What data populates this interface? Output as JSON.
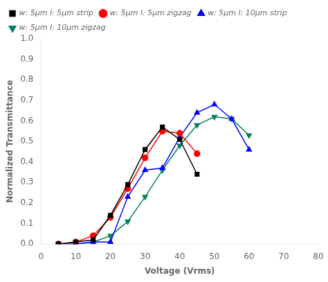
{
  "chart_data": {
    "type": "line",
    "xlabel": "Voltage (Vrms)",
    "ylabel": "Normalized Transmittance",
    "series": [
      {
        "name": "w: 5μm l: 5μm strip",
        "color": "black",
        "marker": "square",
        "x": [
          5,
          10,
          15,
          20,
          25,
          30,
          35,
          40,
          45
        ],
        "values": [
          0.0,
          0.01,
          0.02,
          0.14,
          0.29,
          0.46,
          0.57,
          0.51,
          0.34
        ]
      },
      {
        "name": "w: 5μm l: 5μm zigzag",
        "color": "red",
        "marker": "circle",
        "x": [
          5,
          10,
          15,
          20,
          25,
          30,
          35,
          40,
          45
        ],
        "values": [
          0.0,
          0.01,
          0.04,
          0.13,
          0.27,
          0.42,
          0.55,
          0.54,
          0.44
        ]
      },
      {
        "name": "w: 5μm l: 10μm strip",
        "color": "blue",
        "marker": "triangle_up",
        "x": [
          5,
          10,
          15,
          20,
          25,
          30,
          35,
          40,
          45,
          50,
          55,
          60
        ],
        "values": [
          0.0,
          0.0,
          0.01,
          0.01,
          0.23,
          0.36,
          0.37,
          0.52,
          0.64,
          0.68,
          0.61,
          0.46
        ]
      },
      {
        "name": "w: 5μm l: 10μm zigzag",
        "color": "#008060",
        "marker": "triangle_down",
        "x": [
          5,
          10,
          15,
          20,
          25,
          30,
          35,
          40,
          45,
          50,
          55,
          60
        ],
        "values": [
          0.0,
          0.0,
          0.01,
          0.04,
          0.11,
          0.23,
          0.36,
          0.48,
          0.58,
          0.62,
          0.61,
          0.53
        ]
      }
    ],
    "xlim": [
      0,
      80
    ],
    "xticks": [
      0,
      10,
      20,
      30,
      40,
      50,
      60,
      70,
      80
    ],
    "ylim": [
      0.0,
      1.0
    ],
    "yticks": [
      {
        "value": 0.0,
        "label": "0.0"
      },
      0.1,
      0.2,
      0.3,
      0.4,
      0.5,
      0.6,
      0.7,
      0.8,
      0.9,
      {
        "value": 1.0,
        "label": "1.0"
      }
    ],
    "grid": false,
    "legend": "upper left"
  }
}
